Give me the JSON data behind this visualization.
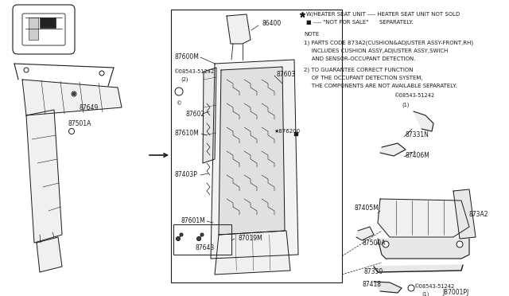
{
  "bg_color": "#ffffff",
  "line_color": "#1a1a1a",
  "text_color": "#1a1a1a",
  "fig_width": 6.4,
  "fig_height": 3.72,
  "dpi": 100,
  "notes_star": "★ W/HEATER SEAT UNIT ---- HEATER SEAT UNIT NOT SOLD",
  "notes_star2": "■ ---- \"NOT FOR SALE\"      SEPARATELY.",
  "note_label": "NOTE",
  "note1a": "1) PARTS CODE 873A2(CUSHION&ADJUSTER ASSY-FRONT,RH)",
  "note1b": "   INCLUDES CUSHION ASSY,ADJUSTER ASSY,SWICH",
  "note1c": "   AND SENSOR-OCCUPANT DETECTION.",
  "note2a": "2) TO GUARANTEE CORRECT FUNCTION",
  "note2b": "   OF THE OCCUPANT DETECTION SYSTEM,",
  "note2c": "   THE COMPONENTS ARE NOT AVAILABLE SEPARATELY.",
  "diagram_id": "J87001PJ"
}
